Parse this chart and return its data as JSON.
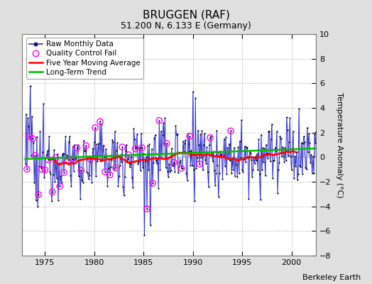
{
  "title": "BRUGGEN (RAF)",
  "subtitle": "51.200 N, 6.133 E (Germany)",
  "ylabel": "Temperature Anomaly (°C)",
  "credit": "Berkeley Earth",
  "ylim": [
    -8,
    10
  ],
  "yticks": [
    -8,
    -6,
    -4,
    -2,
    0,
    2,
    4,
    6,
    8,
    10
  ],
  "year_start": 1973,
  "year_end": 2003,
  "xticks": [
    1975,
    1980,
    1985,
    1990,
    1995,
    2000
  ],
  "background_color": "#e0e0e0",
  "plot_bg_color": "#ffffff",
  "raw_color": "#3333cc",
  "raw_fill_color": "#8888cc",
  "qc_color": "#ff00ff",
  "moving_avg_color": "#ff0000",
  "trend_color": "#00bb00",
  "grid_color": "#bbbbbb",
  "legend_fontsize": 7.5,
  "title_fontsize": 11,
  "subtitle_fontsize": 9,
  "ylabel_fontsize": 8,
  "tick_fontsize": 8,
  "credit_fontsize": 8
}
